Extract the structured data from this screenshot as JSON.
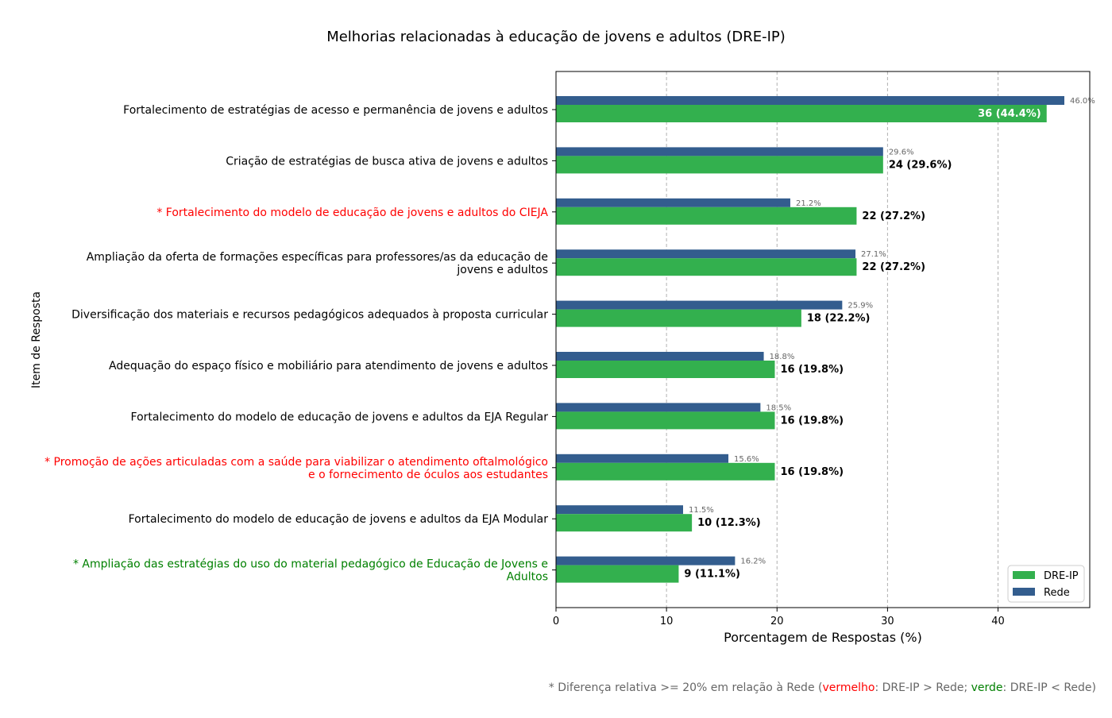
{
  "chart_data": {
    "type": "bar",
    "orientation": "horizontal",
    "title": "Melhorias relacionadas à educação de jovens e adultos (DRE-IP)",
    "xlabel": "Porcentagem de Respostas (%)",
    "ylabel": "Item de Resposta",
    "xlim": [
      0,
      48.3
    ],
    "xticks": [
      "0",
      "10",
      "20",
      "30",
      "40"
    ],
    "grid": "vertical dashed",
    "legend_position": "bottom-right",
    "colors": {
      "dre_ip": "#33b04e",
      "rede": "#335d8e",
      "highlight_higher": "#ff0000",
      "highlight_lower": "#008000",
      "normal_label": "#000000",
      "footnote": "#666666"
    },
    "categories": [
      {
        "lines": [
          "Fortalecimento de estratégias de acesso e permanência de jovens e adultos"
        ],
        "highlight": "none"
      },
      {
        "lines": [
          "Criação de estratégias de busca ativa de jovens e adultos"
        ],
        "highlight": "none"
      },
      {
        "lines": [
          "* Fortalecimento do modelo de educação de jovens e adultos do CIEJA"
        ],
        "highlight": "red"
      },
      {
        "lines": [
          "Ampliação da oferta de formações específicas para professores/as da educação de",
          "jovens e adultos"
        ],
        "highlight": "none"
      },
      {
        "lines": [
          "Diversificação dos materiais e recursos pedagógicos adequados à proposta curricular"
        ],
        "highlight": "none"
      },
      {
        "lines": [
          "Adequação do espaço físico e mobiliário para atendimento de jovens e adultos"
        ],
        "highlight": "none"
      },
      {
        "lines": [
          "Fortalecimento do modelo de educação de jovens e adultos da EJA Regular"
        ],
        "highlight": "none"
      },
      {
        "lines": [
          "* Promoção de ações articuladas com a saúde para viabilizar o atendimento oftalmológico",
          "e o fornecimento de óculos aos estudantes"
        ],
        "highlight": "red"
      },
      {
        "lines": [
          "Fortalecimento do modelo de educação de jovens e adultos da EJA Modular"
        ],
        "highlight": "none"
      },
      {
        "lines": [
          "* Ampliação das estratégias do uso do material pedagógico de Educação de Jovens e",
          "Adultos"
        ],
        "highlight": "green"
      }
    ],
    "series": [
      {
        "name": "DRE-IP",
        "values": [
          44.4,
          29.6,
          27.2,
          27.2,
          22.2,
          19.8,
          19.8,
          19.8,
          12.3,
          11.1
        ],
        "labels": [
          "36 (44.4%)",
          "24 (29.6%)",
          "22 (27.2%)",
          "22 (27.2%)",
          "18 (22.2%)",
          "16 (19.8%)",
          "16 (19.8%)",
          "16 (19.8%)",
          "10 (12.3%)",
          "9 (11.1%)"
        ]
      },
      {
        "name": "Rede",
        "values": [
          46.0,
          29.6,
          21.2,
          27.1,
          25.9,
          18.8,
          18.5,
          15.6,
          11.5,
          16.2
        ],
        "labels": [
          "46.0%",
          "29.6%",
          "21.2%",
          "27.1%",
          "25.9%",
          "18.8%",
          "18.5%",
          "15.6%",
          "11.5%",
          "16.2%"
        ]
      }
    ],
    "footnote": {
      "part1": "* Diferença relativa >= 20% em relação à Rede (",
      "red_word": "vermelho",
      "part2": ": DRE-IP > Rede; ",
      "green_word": "verde",
      "part3": ": DRE-IP < Rede)"
    }
  }
}
